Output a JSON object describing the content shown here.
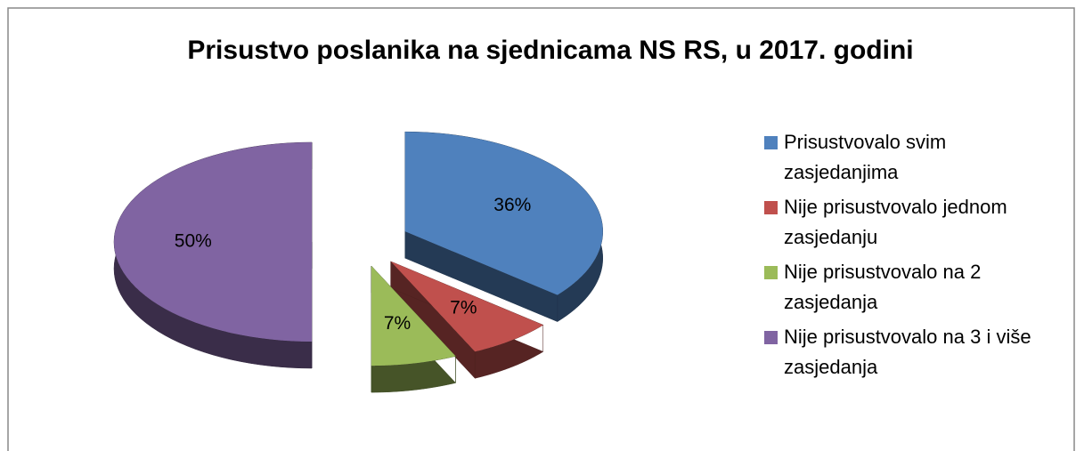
{
  "chart_data": {
    "type": "pie",
    "title": "Prisustvo poslanika na sjednicama NS RS, u 2017. godini",
    "categories": [
      "Prisustvovalo svim zasjedanjima",
      "Nije prisustvovalo jednom zasjedanju",
      "Nije prisustvovalo na 2 zasjedanja",
      "Nije prisustvovalo na 3 i više zasjedanja"
    ],
    "values": [
      36,
      7,
      7,
      50
    ],
    "value_labels": [
      "36%",
      "7%",
      "7%",
      "50%"
    ],
    "colors": [
      "#4f81bd",
      "#c0504d",
      "#9bbb59",
      "#8064a2"
    ],
    "legend": "right"
  }
}
